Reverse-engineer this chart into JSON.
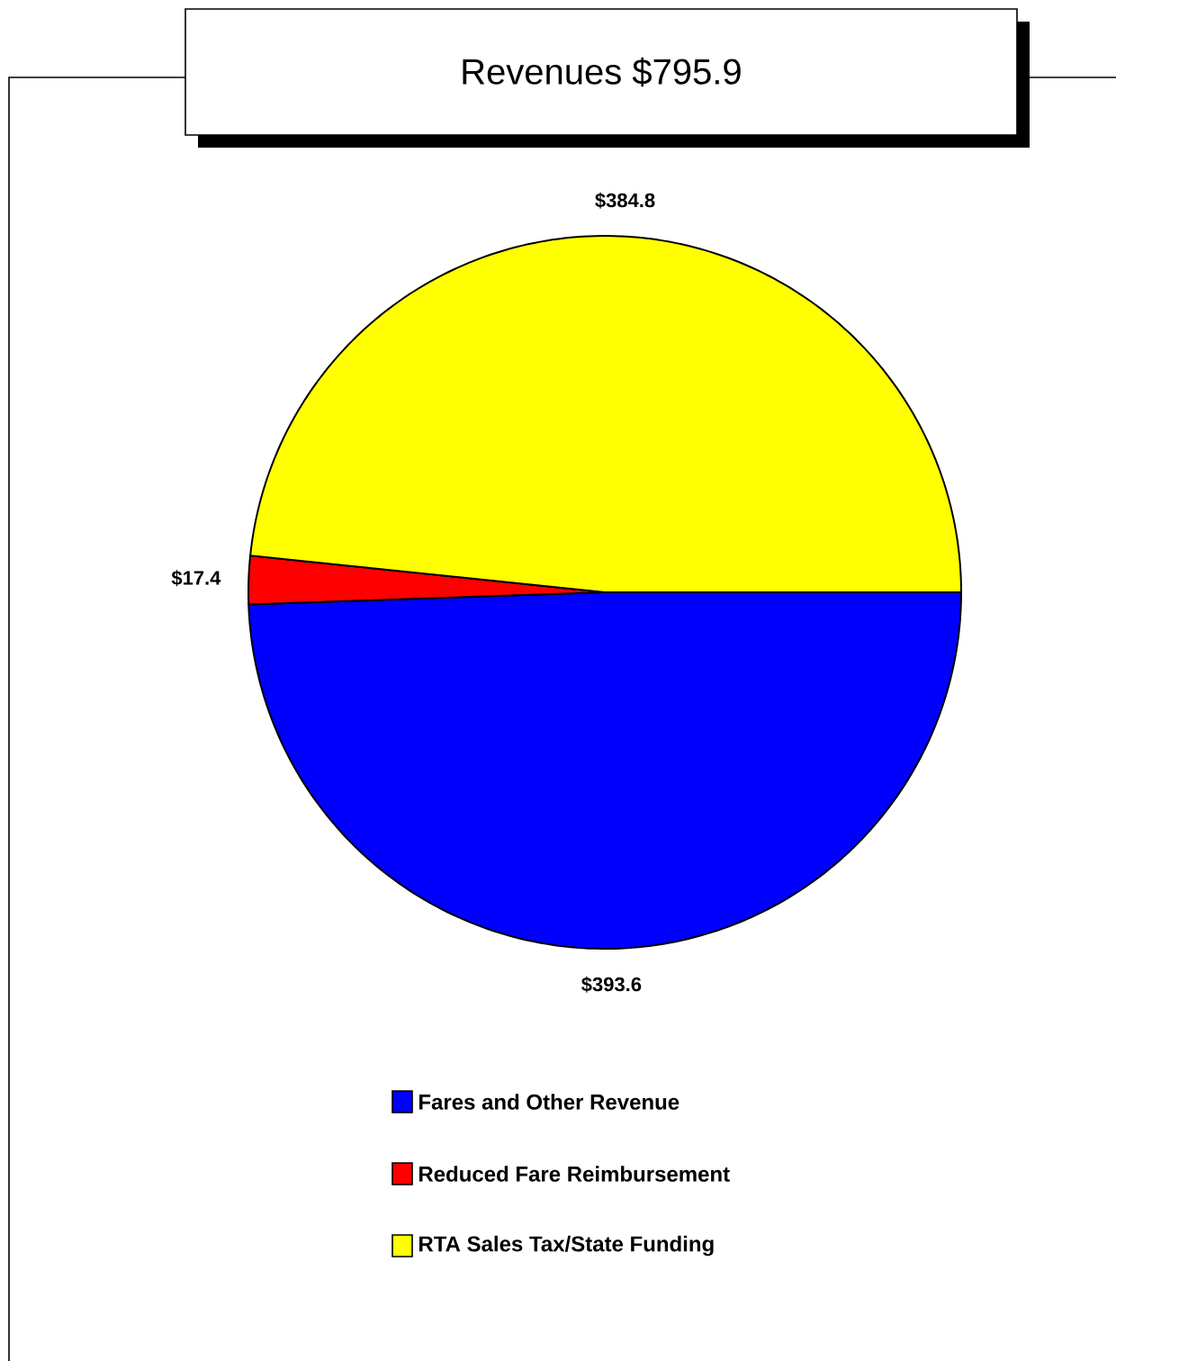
{
  "chart_data": {
    "type": "pie",
    "title": "Revenues $795.9",
    "categories": [
      "Fares and Other Revenue",
      "Reduced Fare Reimbursement",
      "RTA Sales Tax/State Funding"
    ],
    "values": [
      393.6,
      17.4,
      384.8
    ],
    "colors": [
      "#0000ff",
      "#ff0000",
      "#ffff00"
    ],
    "value_labels": [
      "$393.6",
      "$17.4",
      "$384.8"
    ],
    "legend": "bottom"
  }
}
